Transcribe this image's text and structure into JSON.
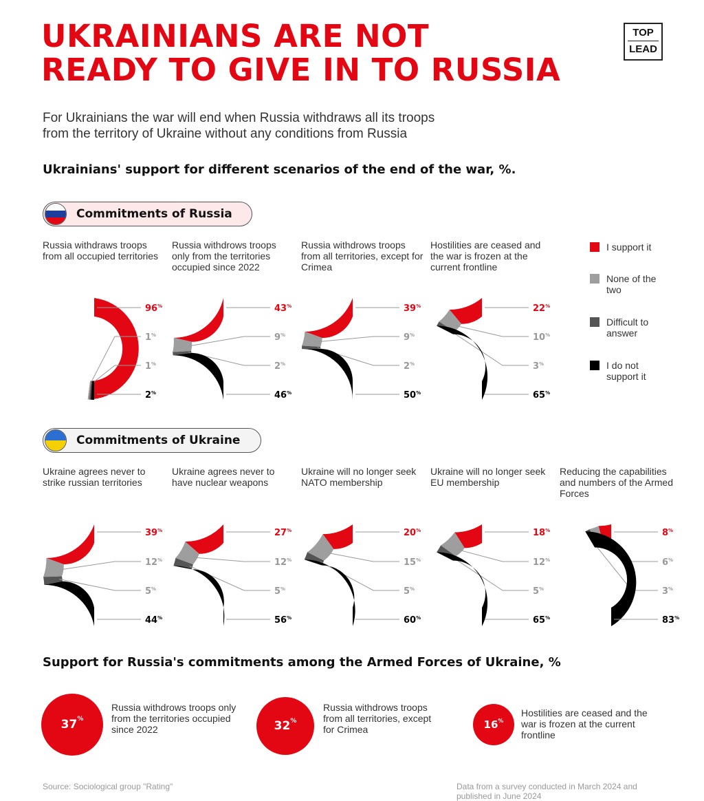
{
  "title": [
    "UKRAINIANS ARE NOT",
    "READY TO GIVE IN TO RUSSIA"
  ],
  "logo": {
    "top": "TOP",
    "bottom": "LEAD"
  },
  "subtitle": [
    "For Ukrainians the war will end when Russia withdraws all its troops",
    "from the territory of Ukraine without any conditions from Russia"
  ],
  "question": "Ukrainians' support for different scenarios of the end of the war, %.",
  "colors": {
    "support": "#e30613",
    "none": "#9e9e9e",
    "difficult": "#555555",
    "not_support": "#000000"
  },
  "legend": [
    "I support it",
    "None of the two",
    "Difficult to answer",
    "I do not support it"
  ],
  "chart_data": [
    {
      "type": "donut-half",
      "group": "Commitments of Russia",
      "series_names": [
        "I support it",
        "None of the two",
        "Difficult to answer",
        "I do not support it"
      ],
      "charts": [
        {
          "label": "Russia withdraws troops from all occupied territories",
          "values": [
            96,
            1,
            1,
            2
          ]
        },
        {
          "label": "Russia withdrows troops only from the territories occupied since 2022",
          "values": [
            43,
            9,
            2,
            46
          ]
        },
        {
          "label": "Russia withdrows troops from all territories, except for Crimea",
          "values": [
            39,
            9,
            2,
            50
          ]
        },
        {
          "label": "Hostilities are ceased and the war is frozen at the current frontline",
          "values": [
            22,
            10,
            3,
            65
          ]
        }
      ]
    },
    {
      "type": "donut-half",
      "group": "Commitments of Ukraine",
      "series_names": [
        "I support it",
        "None of the two",
        "Difficult to answer",
        "I do not support it"
      ],
      "charts": [
        {
          "label": "Ukraine agrees never to strike russian territories",
          "values": [
            39,
            12,
            5,
            44
          ]
        },
        {
          "label": "Ukraine agrees never to have nuclear weapons",
          "values": [
            27,
            12,
            5,
            56
          ]
        },
        {
          "label": "Ukraine will no longer seek NATO membership",
          "values": [
            20,
            15,
            5,
            60
          ]
        },
        {
          "label": "Ukraine will no longer seek EU membership",
          "values": [
            18,
            12,
            5,
            65
          ]
        },
        {
          "label": "Reducing the capabilities and numbers of the Armed Forces",
          "values": [
            8,
            6,
            3,
            83
          ]
        }
      ]
    },
    {
      "type": "bubble",
      "title": "Support for Russia's commitments among the Armed Forces of Ukraine, %",
      "items": [
        {
          "value": 37,
          "label": "Russia withdrows troops only from the territories occupied since 2022"
        },
        {
          "value": 32,
          "label": "Russia withdrows troops from all territories, except for Crimea"
        },
        {
          "value": 16,
          "label": "Hostilities are ceased and the war is frozen at the current frontline"
        }
      ]
    }
  ],
  "groups": {
    "russia": "Commitments of Russia",
    "ukraine": "Commitments of Ukraine"
  },
  "footer": {
    "source": "Source: Sociological group \"Rating\"",
    "note": "Data from a survey conducted in March 2024 and published in June 2024"
  }
}
